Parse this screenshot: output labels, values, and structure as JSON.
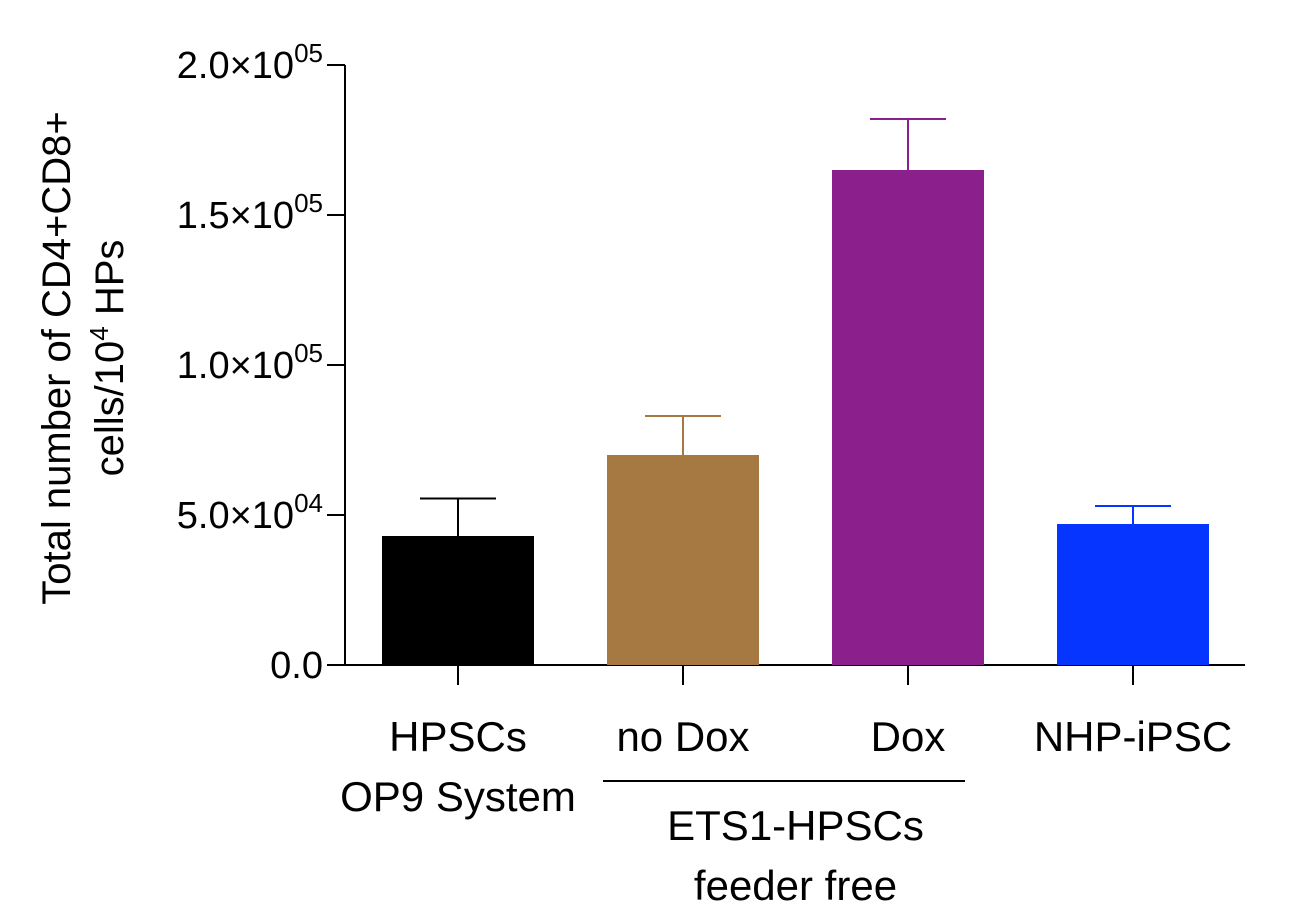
{
  "chart_data": {
    "type": "bar",
    "categories": [
      {
        "lines": [
          "HPSCs",
          "OP9 System"
        ]
      },
      {
        "lines": [
          "no Dox"
        ]
      },
      {
        "lines": [
          "Dox"
        ]
      },
      {
        "lines": [
          "NHP-iPSC"
        ]
      }
    ],
    "values": [
      43000,
      70000,
      165000,
      47000
    ],
    "errors": [
      12500,
      13000,
      17000,
      6000
    ],
    "colors": [
      "#000000",
      "#A57941",
      "#8B1F8C",
      "#0535FF"
    ],
    "group_label": {
      "spans": [
        1,
        2
      ],
      "lines": [
        "ETS1-HPSCs",
        "feeder free"
      ]
    },
    "ylabel_lines": [
      "Total number of CD4+CD8+",
      "cells/10",
      "4",
      " HPs"
    ],
    "yticks": [
      {
        "value": 0,
        "mantissa": "0.0",
        "exp": ""
      },
      {
        "value": 50000,
        "mantissa": "5.0×10",
        "exp": "04"
      },
      {
        "value": 100000,
        "mantissa": "1.0×10",
        "exp": "05"
      },
      {
        "value": 150000,
        "mantissa": "1.5×10",
        "exp": "05"
      },
      {
        "value": 200000,
        "mantissa": "2.0×10",
        "exp": "05"
      }
    ],
    "ylim": [
      0,
      200000
    ],
    "grid": false,
    "legend": "none"
  }
}
